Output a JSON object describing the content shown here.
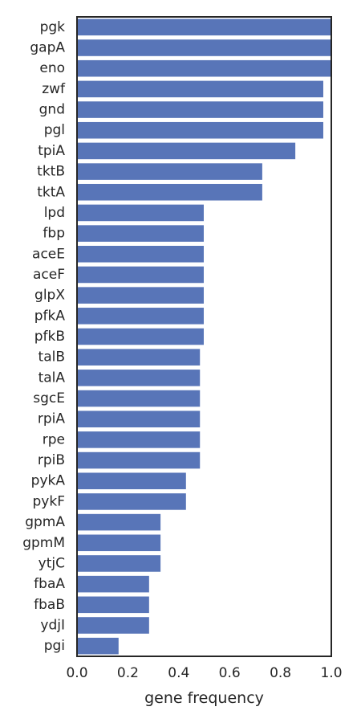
{
  "chart_data": {
    "type": "bar",
    "orientation": "horizontal",
    "xlabel": "gene frequency",
    "ylabel": "",
    "xlim": [
      0.0,
      1.0
    ],
    "x_ticks": [
      "0.0",
      "0.2",
      "0.4",
      "0.6",
      "0.8",
      "1.0"
    ],
    "grid": false,
    "bar_color": "#5875b8",
    "categories": [
      "pgk",
      "gapA",
      "eno",
      "zwf",
      "gnd",
      "pgl",
      "tpiA",
      "tktB",
      "tktA",
      "lpd",
      "fbp",
      "aceE",
      "aceF",
      "glpX",
      "pfkA",
      "pfkB",
      "talB",
      "talA",
      "sgcE",
      "rpiA",
      "rpe",
      "rpiB",
      "pykA",
      "pykF",
      "gpmA",
      "gpmM",
      "ytjC",
      "fbaA",
      "fbaB",
      "ydjI",
      "pgi"
    ],
    "values": [
      1.0,
      1.0,
      1.0,
      0.97,
      0.97,
      0.97,
      0.86,
      0.73,
      0.73,
      0.5,
      0.5,
      0.5,
      0.5,
      0.5,
      0.5,
      0.5,
      0.485,
      0.485,
      0.485,
      0.485,
      0.485,
      0.485,
      0.43,
      0.43,
      0.33,
      0.33,
      0.33,
      0.285,
      0.285,
      0.285,
      0.165
    ]
  }
}
